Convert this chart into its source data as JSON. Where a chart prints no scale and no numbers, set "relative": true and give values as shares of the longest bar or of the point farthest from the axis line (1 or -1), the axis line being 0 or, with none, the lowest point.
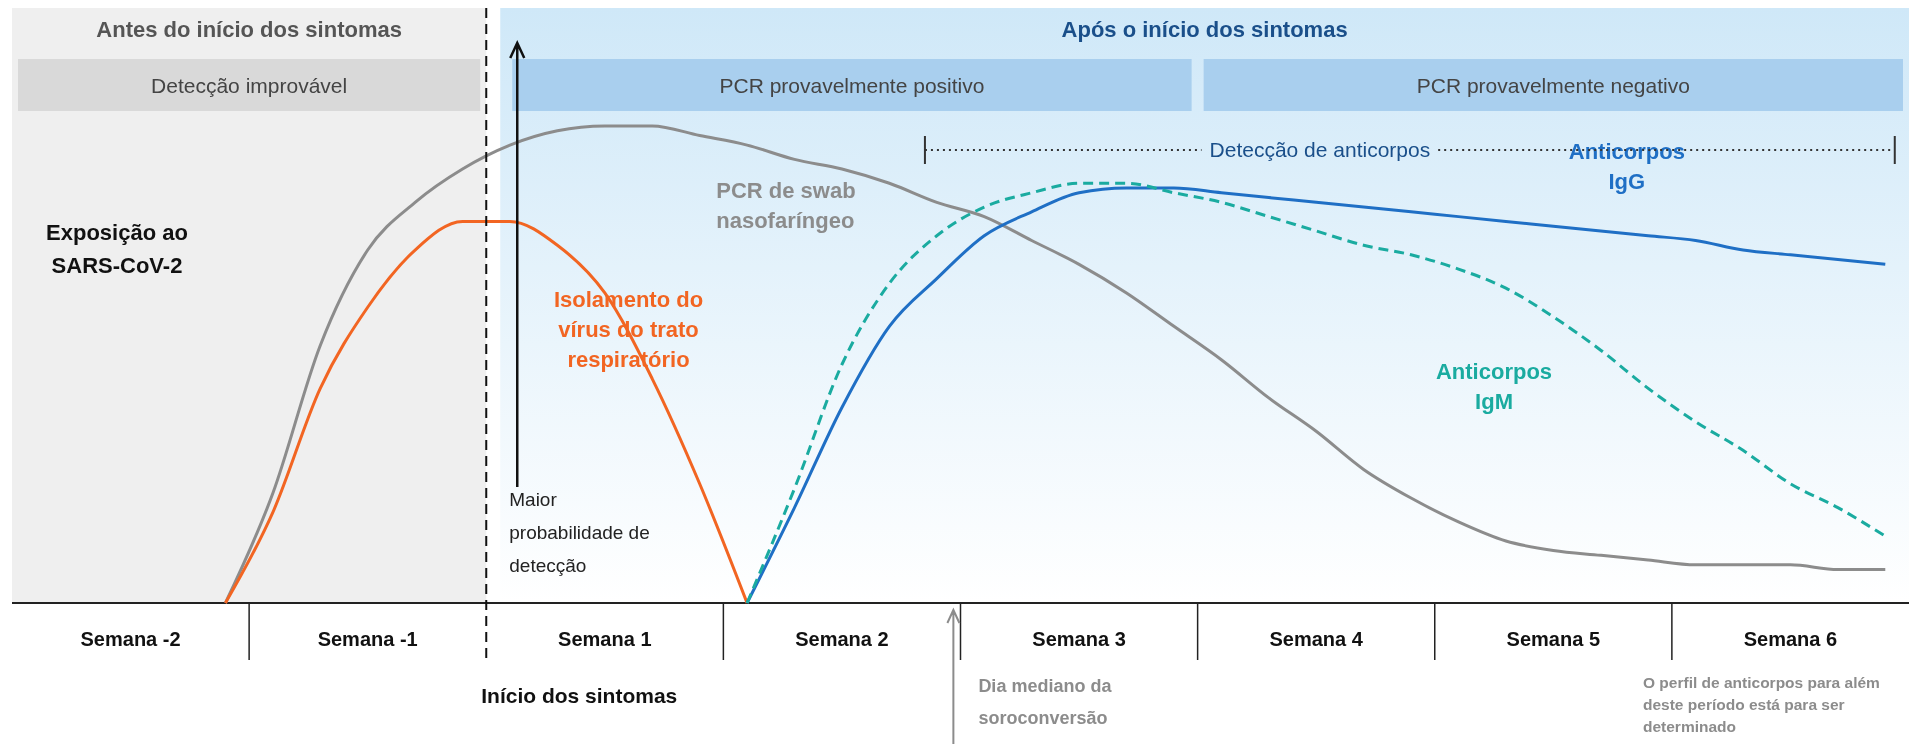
{
  "chart_data": {
    "type": "line",
    "relative": true,
    "categories": [
      null,
      null,
      "Semana -2",
      null,
      null,
      null,
      null,
      "Semana -1",
      null,
      null,
      null,
      null,
      "Semana 1",
      null,
      null,
      null,
      null,
      "Semana 2",
      null,
      null,
      null,
      null,
      "Semana 3",
      null,
      null,
      null,
      null,
      "Semana 4",
      null,
      null,
      null,
      null,
      "Semana 5",
      null,
      null,
      null,
      null,
      "Semana 6",
      null,
      null
    ],
    "series": [
      {
        "name": "PCR de swab nasofaríngeo",
        "color": "#8c8c8c",
        "values": [
          null,
          null,
          null,
          null,
          0,
          0.23,
          0.54,
          0.74,
          0.84,
          0.91,
          0.96,
          0.99,
          1.0,
          1.0,
          0.98,
          0.96,
          0.93,
          0.91,
          0.88,
          0.84,
          0.81,
          0.76,
          0.71,
          0.65,
          0.58,
          0.51,
          0.43,
          0.36,
          0.28,
          0.22,
          0.17,
          0.13,
          0.11,
          0.1,
          0.09,
          0.08,
          0.08,
          0.08,
          0.07,
          0.07
        ]
      },
      {
        "name": "Isolamento do vírus do trato respiratório",
        "color": "#f26522",
        "values": [
          null,
          null,
          null,
          null,
          0,
          0.19,
          0.45,
          0.62,
          0.74,
          0.8,
          0.8,
          0.75,
          0.65,
          0.47,
          0.25,
          0,
          null,
          null,
          null,
          null,
          null,
          null,
          null,
          null,
          null,
          null,
          null,
          null,
          null,
          null,
          null,
          null,
          null,
          null,
          null,
          null,
          null,
          null,
          null,
          null
        ]
      },
      {
        "name": "Anticorpos IgG",
        "color": "#1f6fc5",
        "values": [
          null,
          null,
          null,
          null,
          null,
          null,
          null,
          null,
          null,
          null,
          null,
          null,
          null,
          null,
          null,
          0,
          0.2,
          0.41,
          0.58,
          0.68,
          0.77,
          0.82,
          0.86,
          0.87,
          0.87,
          0.86,
          0.85,
          0.84,
          0.83,
          0.82,
          0.81,
          0.8,
          0.79,
          0.78,
          0.77,
          0.76,
          0.74,
          0.73,
          0.72,
          0.71
        ]
      },
      {
        "name": "Anticorpos IgM",
        "color": "#1aaba0",
        "line_style": "dashed",
        "values": [
          null,
          null,
          null,
          null,
          null,
          null,
          null,
          null,
          null,
          null,
          null,
          null,
          null,
          null,
          null,
          0,
          0.24,
          0.5,
          0.67,
          0.77,
          0.83,
          0.86,
          0.88,
          0.88,
          0.86,
          0.84,
          0.81,
          0.78,
          0.75,
          0.73,
          0.7,
          0.66,
          0.6,
          0.53,
          0.45,
          0.38,
          0.32,
          0.25,
          0.2,
          0.14
        ]
      }
    ],
    "annotations": [
      "Exposição ao SARS-CoV-2",
      "Maior probabilidade de detecção",
      "Dia mediano da soroconversão",
      "O perfil de anticorpos para além deste período está para ser determinado",
      "Início dos sintomas",
      "Detecção de anticorpos",
      "Antes do início dos sintomas",
      "Após o início dos sintomas",
      "Detecção improvável",
      "PCR provavelmente positivo",
      "PCR provavelmente negativo"
    ]
  }
}
